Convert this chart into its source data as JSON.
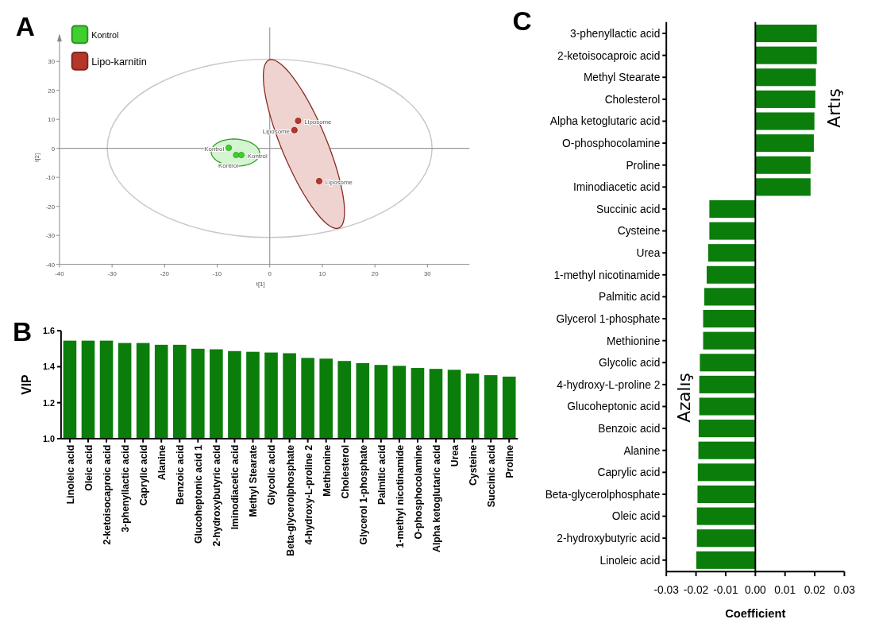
{
  "chart_data": [
    {
      "type": "scatter",
      "title": "A",
      "xlabel": "t[1]",
      "ylabel": "t[2]",
      "xlim": [
        -40,
        38
      ],
      "ylim": [
        -40,
        39
      ],
      "xticks": [
        -40,
        -30,
        -20,
        -10,
        0,
        10,
        20,
        30
      ],
      "yticks": [
        -40,
        -30,
        -20,
        -10,
        0,
        10,
        20,
        30
      ],
      "legend": "top left",
      "marker": "circle",
      "ref_lines": [
        {
          "axis": "x",
          "value": 0
        },
        {
          "axis": "y",
          "value": 0
        }
      ],
      "series": [
        {
          "name": "Kontrol",
          "color": "#3fcf2f",
          "x": [
            -7.8,
            -6.4,
            -5.4
          ],
          "values": [
            0.2,
            -2.3,
            -2.3
          ]
        },
        {
          "name": "Lipo-karnitin",
          "color": "#b5372a",
          "x": [
            5.4,
            4.7,
            9.4
          ],
          "values": [
            9.5,
            6.3,
            -11.3
          ]
        }
      ],
      "annotations": [
        {
          "text": "Kontrol",
          "x": -7.8,
          "y": 0.2
        },
        {
          "text": "Kontrol",
          "x": -6.4,
          "y": -2.3
        },
        {
          "text": "Kontrol",
          "x": -5.4,
          "y": -2.3
        },
        {
          "text": "Liposome",
          "x": 5.4,
          "y": 9.5
        },
        {
          "text": "Liposome",
          "x": 4.7,
          "y": 6.3
        },
        {
          "text": "Liposome",
          "x": 9.4,
          "y": -11.3
        }
      ]
    },
    {
      "type": "bar",
      "title": "B",
      "ylabel": "VIP",
      "color": "#0b7d0b",
      "ylim": [
        1.0,
        1.6
      ],
      "yticks": [
        {
          "value": 1,
          "label": "1.0"
        },
        1.2,
        1.4,
        1.6
      ],
      "categories": [
        "Linoleic acid",
        "Oleic acid",
        "2-ketoisocaproic acid",
        "3-phenyllactic acid",
        "Caprylic acid",
        "Alanine",
        "Benzoic acid",
        "Glucoheptonic acid 1",
        "2-hydroxybutyric acid",
        "Iminodiacetic acid",
        "Methyl Stearate",
        "Glycolic acid",
        "Beta-glycerolphosphate",
        "4-hydroxy-L-proline 2",
        "Methionine",
        "Cholesterol",
        "Glycerol 1-phosphate",
        "Palmitic acid",
        "1-methyl nicotinamide",
        "O-phosphocolamine",
        "Alpha ketoglutaric acid",
        "Urea",
        "Cysteine",
        "Succinic acid",
        "Proline"
      ],
      "values": [
        1.545,
        1.545,
        1.545,
        1.532,
        1.532,
        1.522,
        1.522,
        1.5,
        1.497,
        1.487,
        1.483,
        1.479,
        1.475,
        1.449,
        1.445,
        1.432,
        1.42,
        1.41,
        1.405,
        1.393,
        1.388,
        1.383,
        1.362,
        1.353,
        1.345
      ]
    },
    {
      "type": "bar",
      "orientation": "horizontal",
      "title": "C",
      "xlabel": "Coefficient",
      "color": "#0b7d0b",
      "xlim": [
        -0.03,
        0.03
      ],
      "xticks": [
        -0.03,
        -0.02,
        -0.01,
        {
          "value": 0,
          "label": "0.00"
        },
        0.01,
        0.02,
        0.03
      ],
      "ref_lines": [
        {
          "axis": "x",
          "value": 0
        }
      ],
      "categories": [
        "3-phenyllactic acid",
        "2-ketoisocaproic acid",
        "Methyl Stearate",
        "Cholesterol",
        "Alpha ketoglutaric acid",
        "O-phosphocolamine",
        "Proline",
        "Iminodiacetic acid",
        "Succinic acid",
        "Cysteine",
        "Urea",
        "1-methyl nicotinamide",
        "Palmitic acid",
        "Glycerol 1-phosphate",
        "Methionine",
        "Glycolic acid",
        "4-hydroxy-L-proline 2",
        "Glucoheptonic acid",
        "Benzoic acid",
        "Alanine",
        "Caprylic acid",
        "Beta-glycerolphosphate",
        "Oleic acid",
        "2-hydroxybutyric acid",
        "Linoleic acid"
      ],
      "values": [
        0.0207,
        0.0207,
        0.0204,
        0.0202,
        0.0199,
        0.0197,
        0.0186,
        0.0186,
        -0.0155,
        -0.0155,
        -0.0159,
        -0.0164,
        -0.0172,
        -0.0176,
        -0.0176,
        -0.0187,
        -0.0189,
        -0.0189,
        -0.0191,
        -0.0192,
        -0.0194,
        -0.0195,
        -0.0197,
        -0.0197,
        -0.0199
      ],
      "annotations": [
        "Artış",
        "Azalış"
      ]
    }
  ]
}
